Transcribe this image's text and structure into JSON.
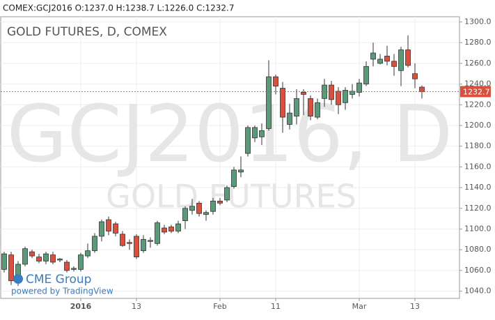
{
  "chart_data": {
    "type": "candlestick",
    "header": "COMEX:GCJ2016 O:1237.0 H:1238.7 L:1226.0 C:1232.7",
    "title": "GOLD FUTURES, D, COMEX",
    "watermark": "GCJ2016, D",
    "watermark_subtitle": "GOLD FUTURES",
    "brand": "CME Group",
    "brand_note": "powered by TradingView",
    "up_color": "#5b9a78",
    "down_color": "#d9503f",
    "categories": [
      null,
      null,
      null,
      null,
      null,
      null,
      null,
      null,
      null,
      null,
      null,
      "2016",
      null,
      null,
      null,
      null,
      null,
      null,
      null,
      "13",
      null,
      null,
      null,
      null,
      null,
      null,
      null,
      null,
      null,
      null,
      null,
      "Feb",
      null,
      null,
      null,
      null,
      null,
      null,
      null,
      "11",
      null,
      null,
      null,
      null,
      null,
      null,
      null,
      null,
      null,
      null,
      null,
      "Mar",
      null,
      null,
      null,
      null,
      null,
      null,
      null,
      "13",
      null
    ],
    "open": [
      1061,
      1075,
      1052,
      1066,
      1078,
      1073,
      1069,
      1075,
      1070,
      1068,
      1061,
      1061,
      1074,
      1079,
      1093,
      1109,
      1105,
      1095,
      1087,
      1093,
      1079,
      1088,
      1086,
      1101,
      1102,
      1098,
      1108,
      1118,
      1125,
      1114,
      1117,
      1127,
      1128,
      1141,
      1155,
      1173,
      1188,
      1189,
      1197,
      1247,
      1236,
      1201,
      1209,
      1232,
      1226,
      1208,
      1226,
      1239,
      1233,
      1222,
      1230,
      1232,
      1240,
      1264,
      1260,
      1267,
      1262,
      1253,
      1273,
      1250,
      1237
    ],
    "high": [
      1078,
      1078,
      1069,
      1083,
      1080,
      1076,
      1078,
      1078,
      1072,
      1070,
      1064,
      1077,
      1086,
      1096,
      1109,
      1112,
      1107,
      1098,
      1090,
      1095,
      1094,
      1092,
      1108,
      1104,
      1104,
      1108,
      1122,
      1129,
      1127,
      1118,
      1130,
      1130,
      1142,
      1160,
      1170,
      1200,
      1200,
      1202,
      1263,
      1249,
      1242,
      1221,
      1235,
      1235,
      1229,
      1226,
      1245,
      1243,
      1237,
      1237,
      1240,
      1245,
      1262,
      1280,
      1269,
      1277,
      1269,
      1276,
      1287,
      1260,
      1238.7
    ],
    "low": [
      1058,
      1046,
      1045,
      1064,
      1072,
      1067,
      1066,
      1066,
      1068,
      1058,
      1059,
      1059,
      1072,
      1077,
      1088,
      1094,
      1093,
      1083,
      1080,
      1071,
      1077,
      1082,
      1084,
      1095,
      1096,
      1096,
      1100,
      1114,
      1112,
      1108,
      1114,
      1123,
      1126,
      1139,
      1150,
      1170,
      1184,
      1181,
      1195,
      1230,
      1193,
      1196,
      1201,
      1210,
      1205,
      1206,
      1218,
      1220,
      1211,
      1215,
      1226,
      1228,
      1238,
      1257,
      1259,
      1258,
      1248,
      1238,
      1256,
      1236,
      1226
    ],
    "close": [
      1076,
      1050,
      1066,
      1081,
      1074,
      1069,
      1076,
      1068,
      1071,
      1060,
      1062,
      1075,
      1079,
      1093,
      1107,
      1098,
      1096,
      1084,
      1086,
      1073,
      1090,
      1089,
      1106,
      1097,
      1098,
      1105,
      1120,
      1122,
      1115,
      1116,
      1127,
      1125,
      1140,
      1157,
      1157,
      1198,
      1198,
      1195,
      1247,
      1238,
      1208,
      1212,
      1226,
      1230,
      1209,
      1222,
      1239,
      1225,
      1220,
      1234,
      1233,
      1241,
      1257,
      1270,
      1264,
      1262,
      1257,
      1273,
      1258,
      1245,
      1232.7
    ],
    "ylim": [
      1033,
      1305
    ],
    "yticks": [
      {
        "value": 1040,
        "label": "1040.0"
      },
      {
        "value": 1060,
        "label": "1060.0"
      },
      {
        "value": 1080,
        "label": "1080.0"
      },
      {
        "value": 1100,
        "label": "1100.0"
      },
      {
        "value": 1120,
        "label": "1120.0"
      },
      {
        "value": 1140,
        "label": "1140.0"
      },
      {
        "value": 1160,
        "label": "1160.0"
      },
      {
        "value": 1180,
        "label": "1180.0"
      },
      {
        "value": 1200,
        "label": "1200.0"
      },
      {
        "value": 1220,
        "label": "1220.0"
      },
      {
        "value": 1240,
        "label": "1240.0"
      },
      {
        "value": 1260,
        "label": "1260.0"
      },
      {
        "value": 1280,
        "label": "1280.0"
      },
      {
        "value": 1300,
        "label": "1300.0"
      }
    ],
    "grid": true
  }
}
